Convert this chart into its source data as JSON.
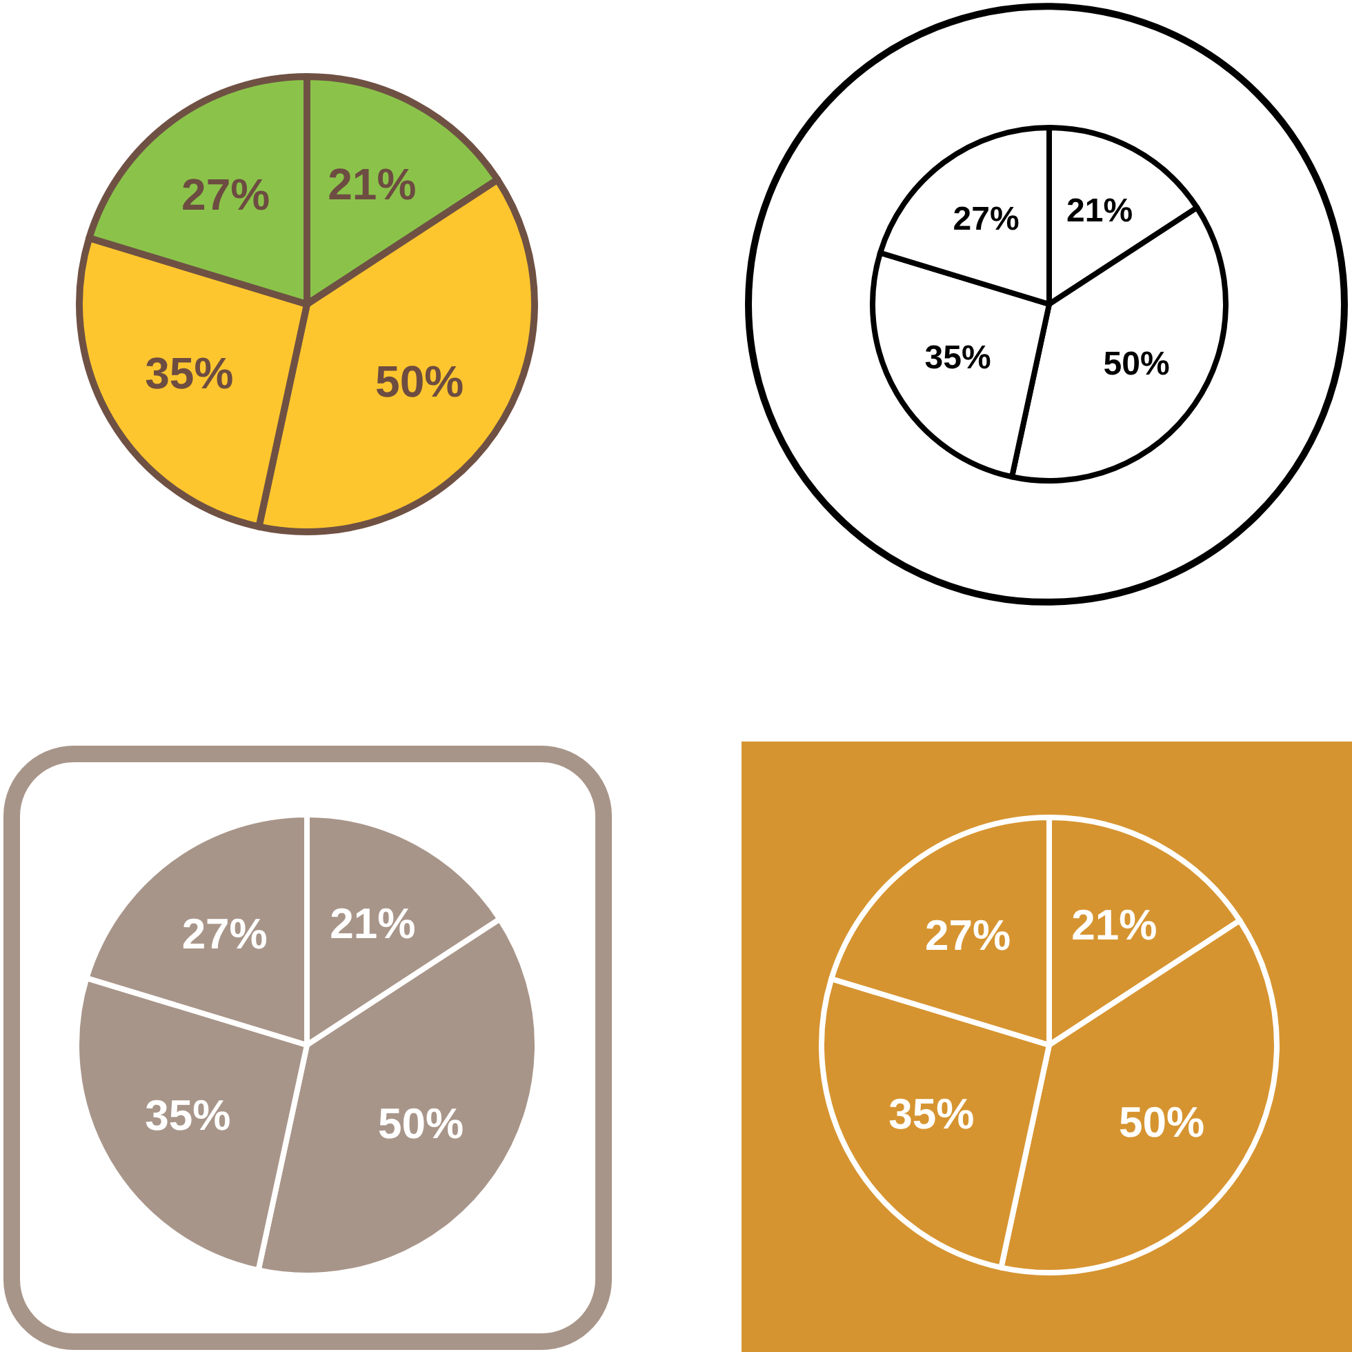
{
  "chart_data": [
    {
      "type": "pie",
      "categories": [
        null,
        null,
        null,
        null
      ],
      "values": [
        21,
        50,
        35,
        27
      ],
      "colors": [
        "#8bc34a",
        "#fec62e",
        "#fec62e",
        "#8bc34a"
      ],
      "value_labels": [
        "21%",
        "50%",
        "35%",
        "27%"
      ]
    },
    {
      "type": "pie",
      "categories": [
        null,
        null,
        null,
        null
      ],
      "values": [
        21,
        50,
        35,
        27
      ],
      "colors": [
        "#ffffff",
        "#ffffff",
        "#ffffff",
        "#ffffff"
      ],
      "value_labels": [
        "21%",
        "50%",
        "35%",
        "27%"
      ]
    },
    {
      "type": "pie",
      "categories": [
        null,
        null,
        null,
        null
      ],
      "values": [
        21,
        50,
        35,
        27
      ],
      "colors": [
        "#a89589",
        "#a89589",
        "#a89589",
        "#a89589"
      ],
      "value_labels": [
        "21%",
        "50%",
        "35%",
        "27%"
      ]
    },
    {
      "type": "pie",
      "categories": [
        null,
        null,
        null,
        null
      ],
      "values": [
        21,
        50,
        35,
        27
      ],
      "colors": [
        "#d69430",
        "#d69430",
        "#d69430",
        "#d69430"
      ],
      "value_labels": [
        "21%",
        "50%",
        "35%",
        "27%"
      ]
    }
  ]
}
